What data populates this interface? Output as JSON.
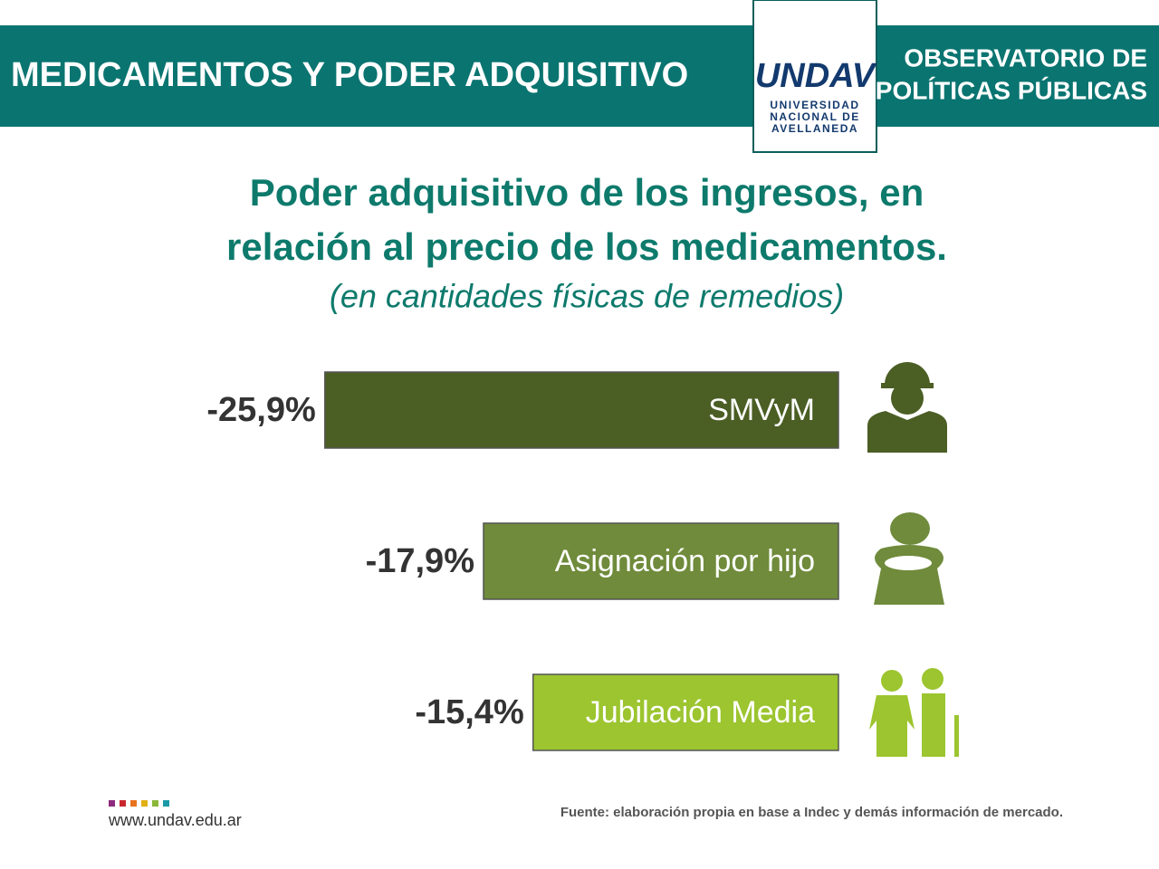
{
  "header": {
    "title": "MEDICAMENTOS Y PODER ADQUISITIVO",
    "logo": "UNDAV",
    "university": [
      "UNIVERSIDAD",
      "NACIONAL DE",
      "AVELLANEDA"
    ],
    "observatory": [
      "OBSERVATORIO DE",
      "POLÍTICAS PÚBLICAS"
    ]
  },
  "chart_data": {
    "type": "bar",
    "title": [
      "Poder adquisitivo de los ingresos, en",
      "relación al precio de los medicamentos."
    ],
    "subtitle": "(en cantidades físicas de remedios)",
    "categories": [
      "SMVyM",
      "Asignación por hijo",
      "Jubilación Media"
    ],
    "values": [
      -25.9,
      -17.9,
      -15.4
    ],
    "value_labels": [
      "-25,9%",
      "-17,9%",
      "-15,4%"
    ],
    "colors": [
      "#4b5e24",
      "#6f8b3b",
      "#9cc52f"
    ]
  },
  "footer": {
    "website": "www.undav.edu.ar",
    "source": "Fuente: elaboración propia en base a Indec y demás información de mercado."
  }
}
